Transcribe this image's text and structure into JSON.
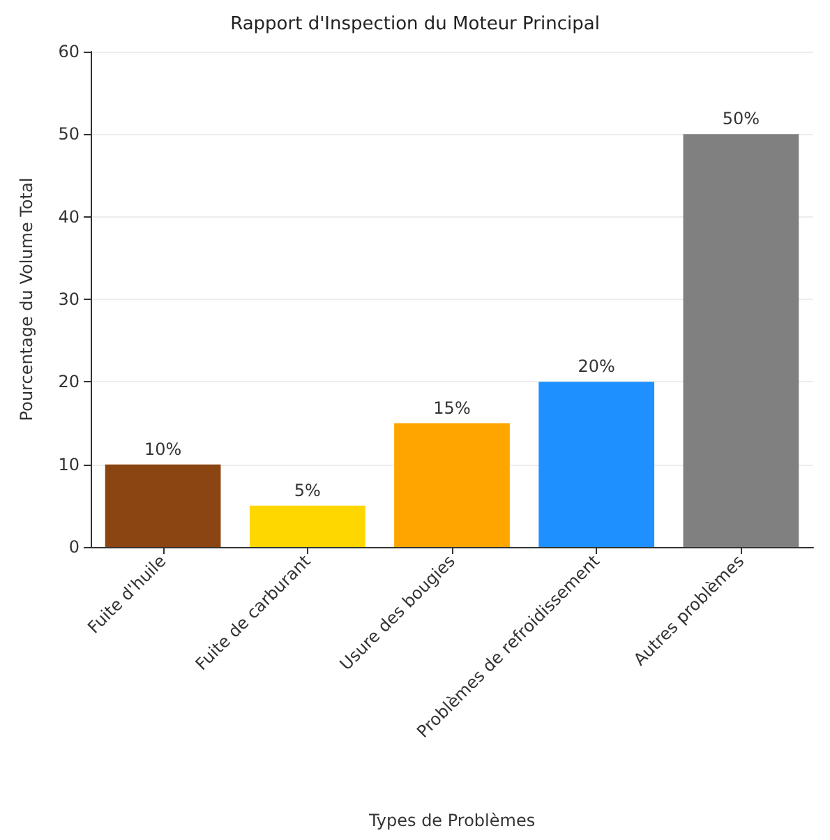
{
  "chart_data": {
    "type": "bar",
    "title": "Rapport d'Inspection du Moteur Principal",
    "xlabel": "Types de Problèmes",
    "ylabel": "Pourcentage du Volume Total",
    "categories": [
      "Fuite d'huile",
      "Fuite de carburant",
      "Usure des bougies",
      "Problèmes de refroidissement",
      "Autres problèmes"
    ],
    "values": [
      10,
      5,
      15,
      20,
      50
    ],
    "colors": [
      "#8b4513",
      "#ffd700",
      "#ffa500",
      "#1e90ff",
      "#808080"
    ],
    "value_labels": [
      "10%",
      "5%",
      "15%",
      "20%",
      "50%"
    ],
    "ylim": [
      0,
      60
    ],
    "yticks": [
      0,
      10,
      20,
      30,
      40,
      50,
      60
    ],
    "grid": "y"
  }
}
